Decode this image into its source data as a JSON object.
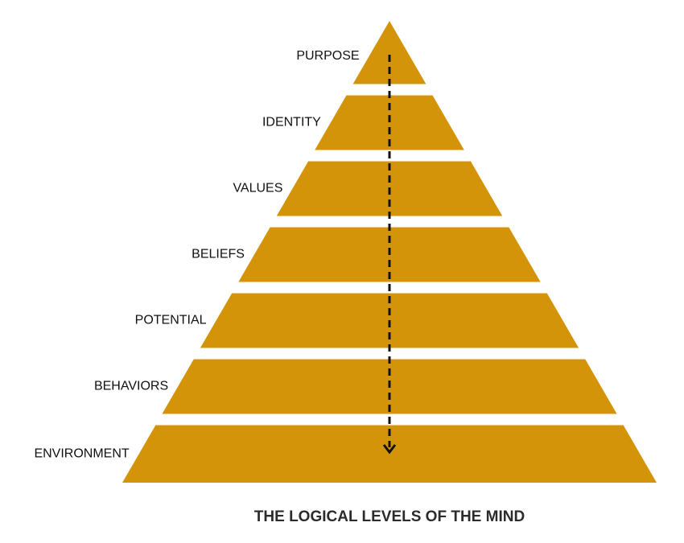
{
  "levels": [
    {
      "label": "PURPOSE"
    },
    {
      "label": "IDENTITY"
    },
    {
      "label": "VALUES"
    },
    {
      "label": "BELIEFS"
    },
    {
      "label": "POTENTIAL"
    },
    {
      "label": "BEHAVIORS"
    },
    {
      "label": "ENVIRONMENT"
    }
  ],
  "caption": "THE LOGICAL LEVELS OF THE MIND"
}
